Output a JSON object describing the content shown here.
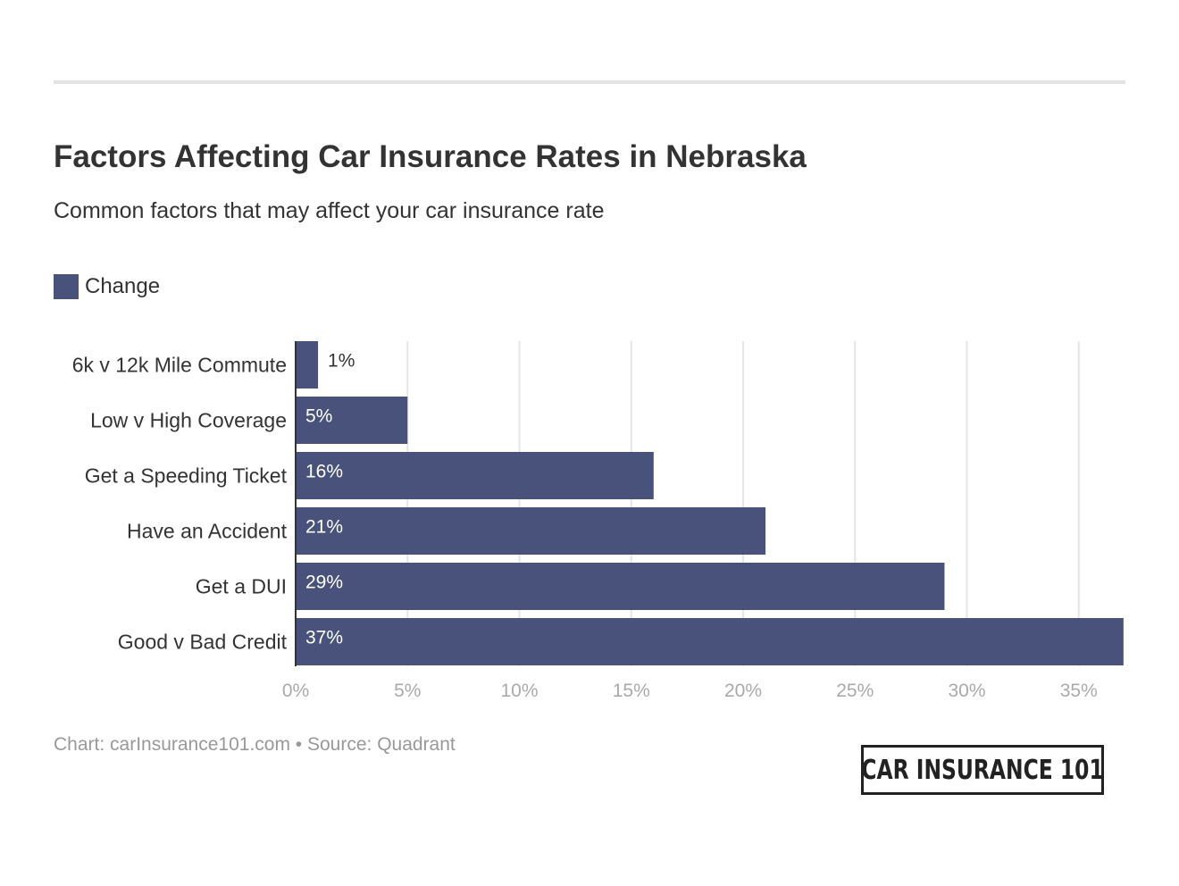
{
  "colors": {
    "bar": "#48527a",
    "grid": "#e5e5e5",
    "axis_line": "#333333",
    "tick_label": "#aaaaaa",
    "category_label": "#333333",
    "value_label_inside": "#ffffff",
    "value_label_outside": "#333333"
  },
  "chart_data": {
    "type": "bar",
    "orientation": "horizontal",
    "title": "Factors Affecting Car Insurance Rates in Nebraska",
    "subtitle": "Common factors that may affect your car insurance rate",
    "categories": [
      "6k v 12k Mile Commute",
      "Low v High Coverage",
      "Get a Speeding Ticket",
      "Have an Accident",
      "Get a DUI",
      "Good v Bad Credit"
    ],
    "series": [
      {
        "name": "Change",
        "values": [
          1,
          5,
          16,
          21,
          29,
          37
        ],
        "labels": [
          "1%",
          "5%",
          "16%",
          "21%",
          "29%",
          "37%"
        ]
      }
    ],
    "xlim": [
      0,
      37
    ],
    "xticks": [
      0,
      5,
      10,
      15,
      20,
      25,
      30,
      35
    ],
    "xtick_labels": [
      "0%",
      "5%",
      "10%",
      "15%",
      "20%",
      "25%",
      "30%",
      "35%"
    ],
    "grid": true,
    "legend_position": "top-left"
  },
  "footer": {
    "text": "Chart: carInsurance101.com • Source: Quadrant"
  },
  "logo": {
    "text": "CAR INSURANCE 101"
  }
}
